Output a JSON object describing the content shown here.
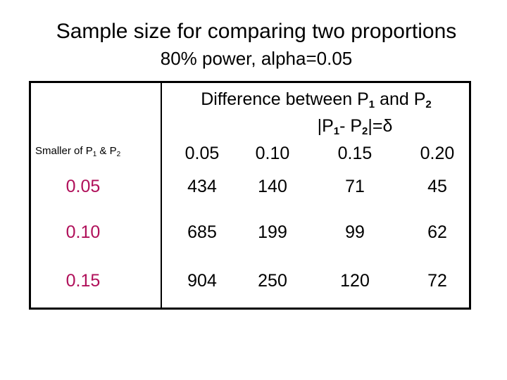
{
  "title": "Sample size for comparing two proportions",
  "subtitle": "80% power, alpha=0.05",
  "table": {
    "header_line1_a": "Difference between P",
    "header_line1_sub1": "1",
    "header_line1_b": " and P",
    "header_line1_sub2": "2",
    "header_line2_a": "|P",
    "header_line2_sub1": "1",
    "header_line2_b": "- P",
    "header_line2_sub2": "2",
    "header_line2_c": "|=δ",
    "row_header_a": "Smaller of P",
    "row_header_sub1": "1",
    "row_header_b": " & P",
    "row_header_sub2": "2",
    "columns": [
      "0.05",
      "0.10",
      "0.15",
      "0.20"
    ],
    "rows": [
      {
        "label": "0.05",
        "values": [
          "434",
          "140",
          "71",
          "45"
        ]
      },
      {
        "label": "0.10",
        "values": [
          "685",
          "199",
          "99",
          "62"
        ]
      },
      {
        "label": "0.15",
        "values": [
          "904",
          "250",
          "120",
          "72"
        ]
      }
    ],
    "row_label_color": "#b0105a"
  }
}
